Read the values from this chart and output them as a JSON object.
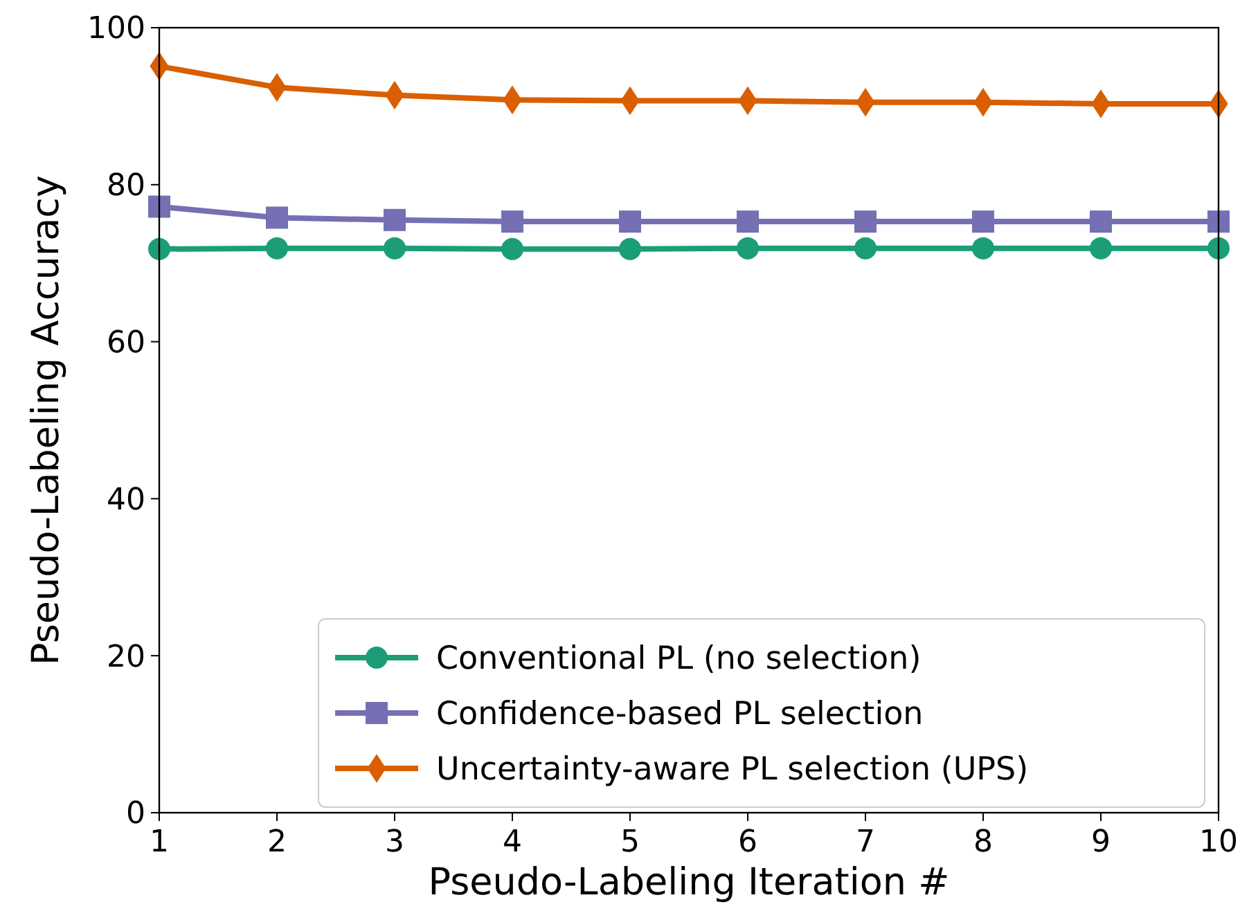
{
  "chart_data": {
    "type": "line",
    "xlabel": "Pseudo-Labeling Iteration #",
    "ylabel": "Pseudo-Labeling Accuracy",
    "x": [
      1,
      2,
      3,
      4,
      5,
      6,
      7,
      8,
      9,
      10
    ],
    "series": [
      {
        "name": "Conventional PL (no selection)",
        "color": "#1b9e77",
        "marker": "circle",
        "values": [
          71.8,
          71.9,
          71.9,
          71.8,
          71.8,
          71.9,
          71.9,
          71.9,
          71.9,
          71.9
        ]
      },
      {
        "name": "Confidence-based PL selection",
        "color": "#7570b3",
        "marker": "square",
        "values": [
          77.2,
          75.8,
          75.5,
          75.3,
          75.3,
          75.3,
          75.3,
          75.3,
          75.3,
          75.3
        ]
      },
      {
        "name": "Uncertainty-aware PL selection (UPS)",
        "color": "#d95f02",
        "marker": "diamond",
        "values": [
          95.1,
          92.4,
          91.4,
          90.8,
          90.7,
          90.7,
          90.5,
          90.5,
          90.3,
          90.3
        ]
      }
    ],
    "xlim": [
      1,
      10
    ],
    "xticks": [
      1,
      2,
      3,
      4,
      5,
      6,
      7,
      8,
      9,
      10
    ],
    "ylim": [
      0,
      100
    ],
    "yticks": [
      0,
      20,
      40,
      60,
      80,
      100
    ],
    "grid": false,
    "legend": "bottom right",
    "line_style": "solid"
  }
}
